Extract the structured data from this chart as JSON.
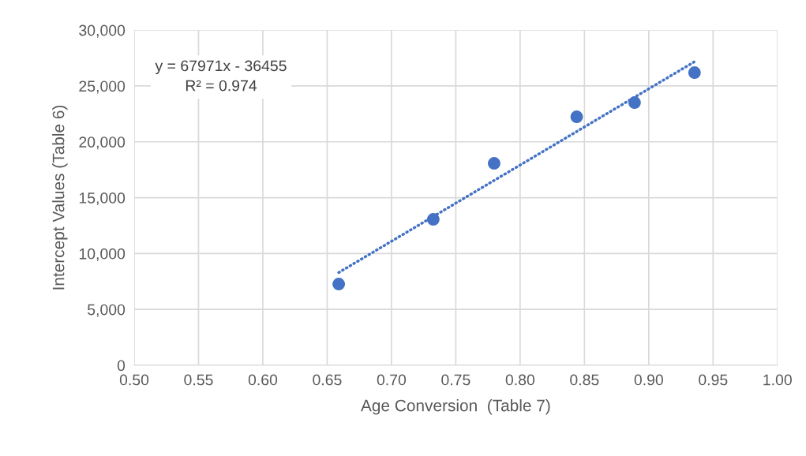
{
  "chart_data": {
    "type": "scatter",
    "xlabel": "Age Conversion  (Table 7)",
    "ylabel": "Intercept Values (Table 6)",
    "series": [
      {
        "color": "#4472c4",
        "x": [
          0.659,
          0.7325,
          0.7798,
          0.844,
          0.889,
          0.9356
        ],
        "values": [
          7270,
          13060,
          18070,
          22240,
          23510,
          26190
        ],
        "marker": "circle"
      },
      {
        "type": "line",
        "color": "#4472c4",
        "x": [
          0.659,
          0.936
        ],
        "values": [
          8300,
          27200
        ],
        "line_style": "dotted",
        "marker": "none"
      }
    ],
    "xlim": [
      0.5,
      1.0
    ],
    "xticks": [
      {
        "value": 0.5,
        "label": "0.50"
      },
      {
        "value": 0.55,
        "label": "0.55"
      },
      {
        "value": 0.6,
        "label": "0.60"
      },
      {
        "value": 0.65,
        "label": "0.65"
      },
      {
        "value": 0.7,
        "label": "0.70"
      },
      {
        "value": 0.75,
        "label": "0.75"
      },
      {
        "value": 0.8,
        "label": "0.80"
      },
      {
        "value": 0.85,
        "label": "0.85"
      },
      {
        "value": 0.9,
        "label": "0.90"
      },
      {
        "value": 0.95,
        "label": "0.95"
      },
      {
        "value": 1.0,
        "label": "1.00"
      }
    ],
    "ylim": [
      0,
      30000
    ],
    "yticks": [
      0,
      {
        "value": 5000,
        "label": "5,000"
      },
      {
        "value": 10000,
        "label": "10,000"
      },
      {
        "value": 15000,
        "label": "15,000"
      },
      {
        "value": 20000,
        "label": "20,000"
      },
      {
        "value": 25000,
        "label": "25,000"
      },
      {
        "value": 30000,
        "label": "30,000"
      }
    ],
    "grid": true,
    "annotations": [
      "y = 67971x - 36455\nR² = 0.974"
    ]
  }
}
